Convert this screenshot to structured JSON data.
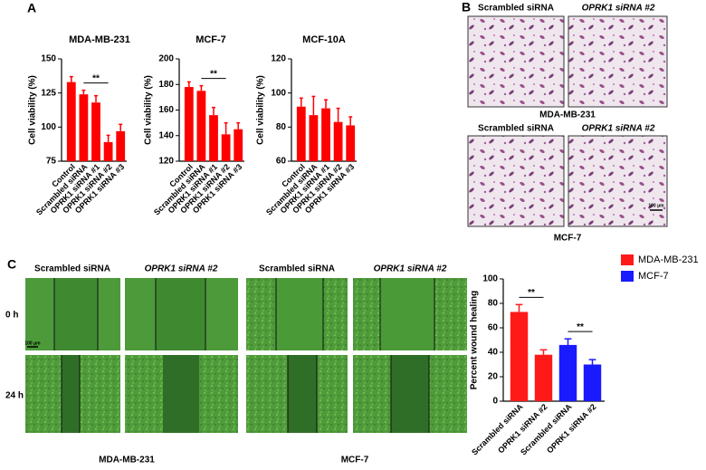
{
  "panel_labels": [
    "A",
    "B",
    "C"
  ],
  "panel_b": {
    "columns": [
      "Scrambled siRNA",
      "OPRK1 siRNA #2"
    ],
    "rows": [
      "MDA-MB-231",
      "MCF-7"
    ],
    "scale_bar": "100 μm"
  },
  "panel_c": {
    "columns": [
      "Scrambled siRNA",
      "OPRK1 siRNA #2"
    ],
    "time_points": [
      "0 h",
      "24 h"
    ],
    "cell_lines": [
      "MDA-MB-231",
      "MCF-7"
    ],
    "scale_bar": "100 μm"
  },
  "chart_data": [
    {
      "type": "bar",
      "title": "MDA-MB-231",
      "ylabel": "Cell viability (%)",
      "color": "#ff0000",
      "categories": [
        "Control",
        "Scrambled siRNA",
        "OPRK1 siRNA #1",
        "OPRK1 siRNA #2",
        "OPRK1 siRNA #3"
      ],
      "values": [
        133,
        124,
        118,
        89,
        97
      ],
      "errors": [
        4,
        3,
        5,
        5,
        5
      ],
      "ylim": [
        75,
        150
      ],
      "yticks": [
        75,
        100,
        125,
        150
      ],
      "annotations": [
        "**"
      ]
    },
    {
      "type": "bar",
      "title": "MCF-7",
      "ylabel": "Cell viability (%)",
      "color": "#ff0000",
      "categories": [
        "Control",
        "Scrambled siRNA",
        "OPRK1 siRNA #1",
        "OPRK1 siRNA #2",
        "OPRK1 siRNA #3"
      ],
      "values": [
        178,
        175,
        156,
        141,
        145
      ],
      "errors": [
        4,
        4,
        6,
        9,
        5
      ],
      "ylim": [
        120,
        200
      ],
      "yticks": [
        120,
        140,
        160,
        180,
        200
      ],
      "annotations": [
        "**"
      ]
    },
    {
      "type": "bar",
      "title": "MCF-10A",
      "ylabel": "Cell viability (%)",
      "color": "#ff0000",
      "categories": [
        "Control",
        "Scrambled siRNA",
        "OPRK1 siRNA #1",
        "OPRK1 siRNA #2",
        "OPRK1 siRNA #3"
      ],
      "values": [
        92,
        87,
        91,
        83,
        81
      ],
      "errors": [
        5,
        11,
        5,
        8,
        5
      ],
      "ylim": [
        60,
        120
      ],
      "yticks": [
        60,
        80,
        100,
        120
      ]
    },
    {
      "type": "bar",
      "ylabel": "Percent wound healing",
      "categories": [
        "Scrambled siRNA",
        "OPRK1 siRNA #2",
        "Scrambled siRNA",
        "OPRK1 siRNA #2"
      ],
      "series": [
        {
          "name": "MDA-MB-231",
          "color": "#ff1a1a",
          "values": [
            73,
            38,
            null,
            null
          ],
          "errors": [
            6,
            4,
            null,
            null
          ]
        },
        {
          "name": "MCF-7",
          "color": "#1a1aff",
          "values": [
            null,
            null,
            46,
            30
          ],
          "errors": [
            null,
            null,
            5,
            4
          ]
        }
      ],
      "ylim": [
        0,
        100
      ],
      "yticks": [
        0,
        20,
        40,
        60,
        80,
        100
      ],
      "annotations": [
        "**",
        "**"
      ],
      "legend": "right"
    }
  ]
}
